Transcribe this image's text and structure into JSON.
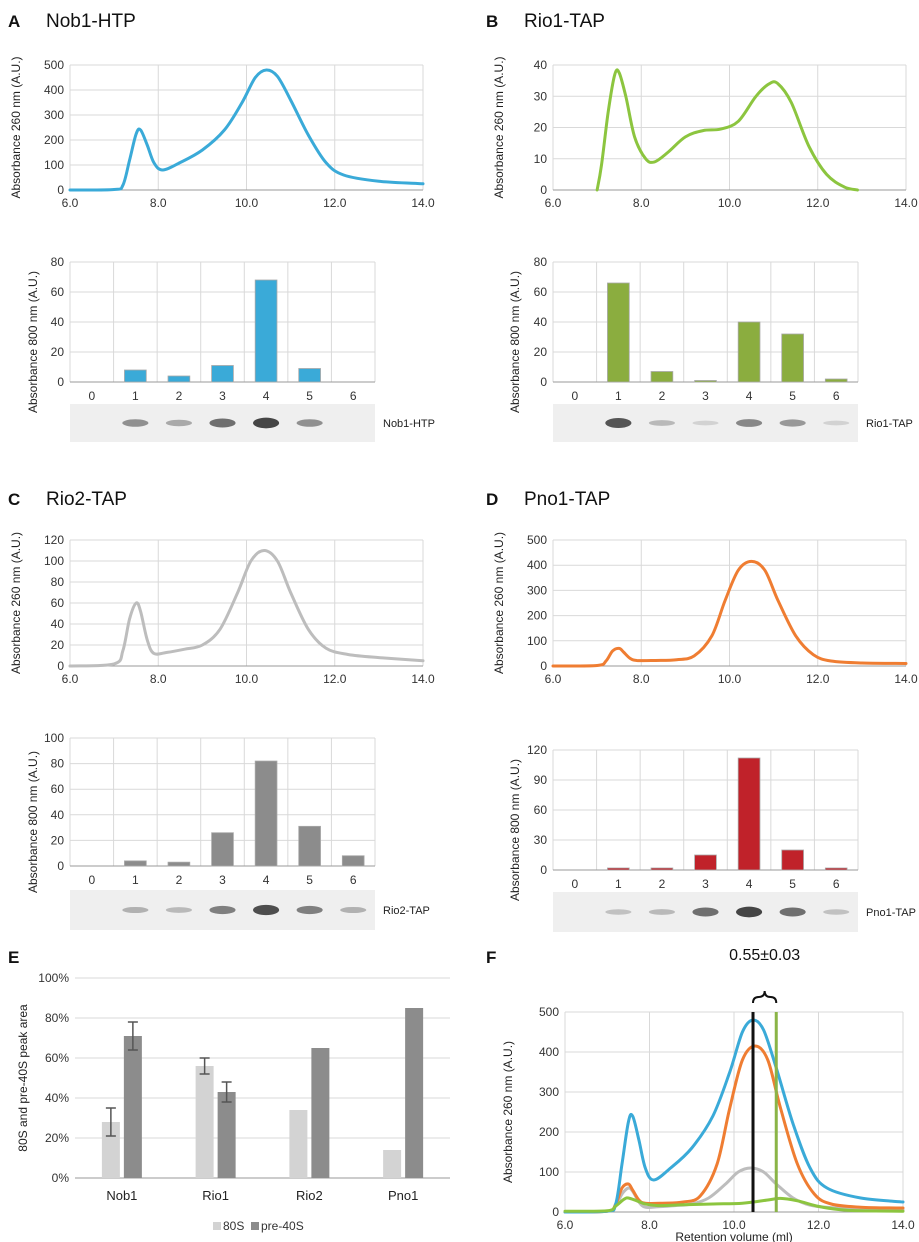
{
  "colors": {
    "nob1": "#3aaad8",
    "rio1_line": "#8cc53f",
    "rio1_bar": "#8bad3f",
    "rio2_line": "#bdbdbd",
    "rio2_bar": "#8c8c8c",
    "pno1_line": "#ef7d32",
    "pno1_bar": "#c0222a",
    "bar_80S": "#d3d3d3",
    "bar_pre40S": "#8c8c8c",
    "grid": "#d9d9d9",
    "marker_black": "#111111",
    "marker_green": "#8ab447"
  },
  "chart_data": [
    {
      "id": "A_top",
      "letter": "A",
      "title": "Nob1-HTP",
      "type": "line",
      "ylabel": "Absorbance 260 nm (A.U.)",
      "xlabel": "",
      "xlim": [
        6,
        14
      ],
      "ylim": [
        0,
        500
      ],
      "xticks": [
        "6.0",
        "8.0",
        "10.0",
        "12.0",
        "14.0"
      ],
      "yticks": [
        "0",
        "100",
        "200",
        "300",
        "400",
        "500"
      ],
      "color": "nob1",
      "x": [
        6.0,
        7.0,
        7.2,
        7.35,
        7.5,
        7.6,
        7.75,
        7.9,
        8.1,
        8.5,
        9.0,
        9.5,
        9.9,
        10.2,
        10.45,
        10.7,
        11.0,
        11.4,
        11.8,
        12.2,
        13.0,
        14.0
      ],
      "y": [
        0,
        2,
        20,
        120,
        225,
        240,
        180,
        110,
        80,
        110,
        160,
        240,
        350,
        450,
        480,
        455,
        360,
        220,
        110,
        60,
        35,
        25
      ]
    },
    {
      "id": "A_bar",
      "type": "bar",
      "ylabel": "Absorbance 800 nm (A.U.)",
      "categories": [
        "0",
        "1",
        "2",
        "3",
        "4",
        "5",
        "6"
      ],
      "values": [
        0,
        8,
        4,
        11,
        68,
        9,
        0
      ],
      "ylim": [
        0,
        80
      ],
      "yticks": [
        "0",
        "20",
        "40",
        "60",
        "80"
      ],
      "color": "nob1",
      "gel_label": "Nob1-HTP",
      "gel_bands": [
        0,
        0.5,
        0.35,
        0.7,
        0.95,
        0.5,
        0
      ]
    },
    {
      "id": "B_top",
      "letter": "B",
      "title": "Rio1-TAP",
      "type": "line",
      "ylabel": "Absorbance 260 nm (A.U.)",
      "xlabel": "",
      "xlim": [
        6,
        14
      ],
      "ylim": [
        0,
        40
      ],
      "xticks": [
        "6.0",
        "8.0",
        "10.0",
        "12.0",
        "14.0"
      ],
      "yticks": [
        "0",
        "10",
        "20",
        "30",
        "40"
      ],
      "color": "rio1_line",
      "x": [
        7.0,
        7.1,
        7.25,
        7.4,
        7.5,
        7.65,
        7.85,
        8.1,
        8.3,
        8.6,
        9.0,
        9.4,
        9.8,
        10.2,
        10.6,
        10.9,
        11.1,
        11.4,
        11.8,
        12.2,
        12.6,
        12.9
      ],
      "y": [
        0,
        8,
        25,
        37,
        37.5,
        30,
        17,
        10,
        9,
        12,
        17,
        19,
        19.5,
        22,
        30,
        34,
        34,
        28,
        14,
        5,
        1,
        0
      ]
    },
    {
      "id": "B_bar",
      "type": "bar",
      "ylabel": "Absorbance 800 nm (A.U.)",
      "categories": [
        "0",
        "1",
        "2",
        "3",
        "4",
        "5",
        "6"
      ],
      "values": [
        0,
        66,
        7,
        1,
        40,
        32,
        2
      ],
      "ylim": [
        0,
        80
      ],
      "yticks": [
        "0",
        "20",
        "40",
        "60",
        "80"
      ],
      "color": "rio1_bar",
      "gel_label": "Rio1-TAP",
      "gel_bands": [
        0,
        0.85,
        0.25,
        0.1,
        0.55,
        0.45,
        0.1
      ]
    },
    {
      "id": "C_top",
      "letter": "C",
      "title": "Rio2-TAP",
      "type": "line",
      "ylabel": "Absorbance 260 nm (A.U.)",
      "xlabel": "",
      "xlim": [
        6,
        14
      ],
      "ylim": [
        0,
        120
      ],
      "xticks": [
        "6.0",
        "8.0",
        "10.0",
        "12.0",
        "14.0"
      ],
      "yticks": [
        "0",
        "20",
        "40",
        "60",
        "80",
        "100",
        "120"
      ],
      "color": "rio2_line",
      "x": [
        6.0,
        7.0,
        7.2,
        7.35,
        7.5,
        7.6,
        7.75,
        7.9,
        8.2,
        8.6,
        9.0,
        9.4,
        9.8,
        10.1,
        10.4,
        10.7,
        11.0,
        11.4,
        11.8,
        12.3,
        13.0,
        14.0
      ],
      "y": [
        0,
        2,
        15,
        45,
        60,
        52,
        25,
        12,
        13,
        16,
        20,
        35,
        70,
        100,
        110,
        100,
        70,
        35,
        17,
        11,
        8,
        5
      ]
    },
    {
      "id": "C_bar",
      "type": "bar",
      "ylabel": "Absorbance 800 nm (A.U.)",
      "categories": [
        "0",
        "1",
        "2",
        "3",
        "4",
        "5",
        "6"
      ],
      "values": [
        0,
        4,
        3,
        26,
        82,
        31,
        8
      ],
      "ylim": [
        0,
        100
      ],
      "yticks": [
        "0",
        "20",
        "40",
        "60",
        "80",
        "100"
      ],
      "color": "rio2_bar",
      "gel_label": "Rio2-TAP",
      "gel_bands": [
        0,
        0.3,
        0.25,
        0.6,
        0.9,
        0.6,
        0.3
      ]
    },
    {
      "id": "D_top",
      "letter": "D",
      "title": "Pno1-TAP",
      "type": "line",
      "ylabel": "Absorbance 260 nm (A.U.)",
      "xlabel": "",
      "xlim": [
        6,
        14
      ],
      "ylim": [
        0,
        500
      ],
      "xticks": [
        "6.0",
        "8.0",
        "10.0",
        "12.0",
        "14.0"
      ],
      "yticks": [
        "0",
        "100",
        "200",
        "300",
        "400",
        "500"
      ],
      "color": "pno1_line",
      "x": [
        6.0,
        7.0,
        7.2,
        7.35,
        7.5,
        7.6,
        7.75,
        7.9,
        8.3,
        8.8,
        9.2,
        9.6,
        9.9,
        10.2,
        10.5,
        10.8,
        11.1,
        11.5,
        11.9,
        12.3,
        13.0,
        14.0
      ],
      "y": [
        0,
        2,
        20,
        60,
        70,
        55,
        30,
        22,
        22,
        25,
        40,
        120,
        260,
        380,
        415,
        380,
        260,
        120,
        45,
        20,
        12,
        10
      ]
    },
    {
      "id": "D_bar",
      "type": "bar",
      "ylabel": "Absorbance 800 nm (A.U.)",
      "categories": [
        "0",
        "1",
        "2",
        "3",
        "4",
        "5",
        "6"
      ],
      "values": [
        0,
        2,
        2,
        15,
        112,
        20,
        2
      ],
      "ylim": [
        0,
        120
      ],
      "yticks": [
        "0",
        "30",
        "60",
        "90",
        "120"
      ],
      "color": "pno1_bar",
      "gel_label": "Pno1-TAP",
      "gel_bands": [
        0,
        0.2,
        0.25,
        0.7,
        0.95,
        0.7,
        0.2
      ]
    },
    {
      "id": "E",
      "letter": "E",
      "type": "bar",
      "ylabel": "80S and pre-40S peak area",
      "categories": [
        "Nob1",
        "Rio1",
        "Rio2",
        "Pno1"
      ],
      "ylim": [
        0,
        100
      ],
      "yticks": [
        "0%",
        "20%",
        "40%",
        "60%",
        "80%",
        "100%"
      ],
      "series": [
        {
          "name": "80S",
          "values": [
            28,
            56,
            34,
            14
          ],
          "errors": [
            7,
            4,
            0,
            0
          ],
          "color": "bar_80S"
        },
        {
          "name": "pre-40S",
          "values": [
            71,
            43,
            65,
            85
          ],
          "errors": [
            7,
            5,
            0,
            0
          ],
          "color": "bar_pre40S"
        }
      ],
      "legend": "bottom"
    },
    {
      "id": "F",
      "letter": "F",
      "type": "line",
      "ylabel": "Absorbance 260 nm (A.U.)",
      "xlabel": "Retention volume (ml)",
      "xlim": [
        6,
        14
      ],
      "ylim": [
        0,
        500
      ],
      "xticks": [
        "6.0",
        "8.0",
        "10.0",
        "12.0",
        "14.0"
      ],
      "yticks": [
        "0",
        "100",
        "200",
        "300",
        "400",
        "500"
      ],
      "annotation": "0.55±0.03",
      "markers": [
        10.45,
        11.0
      ],
      "series_refs": [
        "A_top",
        "C_top",
        "D_top",
        "B_top_overlay"
      ],
      "overlay_rio1": {
        "x": [
          6.0,
          7.0,
          7.2,
          7.4,
          7.5,
          7.7,
          7.9,
          8.2,
          8.8,
          9.5,
          10.2,
          10.8,
          11.1,
          11.5,
          12.0,
          12.5,
          13.0,
          14.0
        ],
        "y": [
          2,
          3,
          15,
          32,
          35,
          28,
          20,
          16,
          18,
          20,
          22,
          30,
          34,
          28,
          14,
          6,
          3,
          2
        ]
      }
    }
  ]
}
